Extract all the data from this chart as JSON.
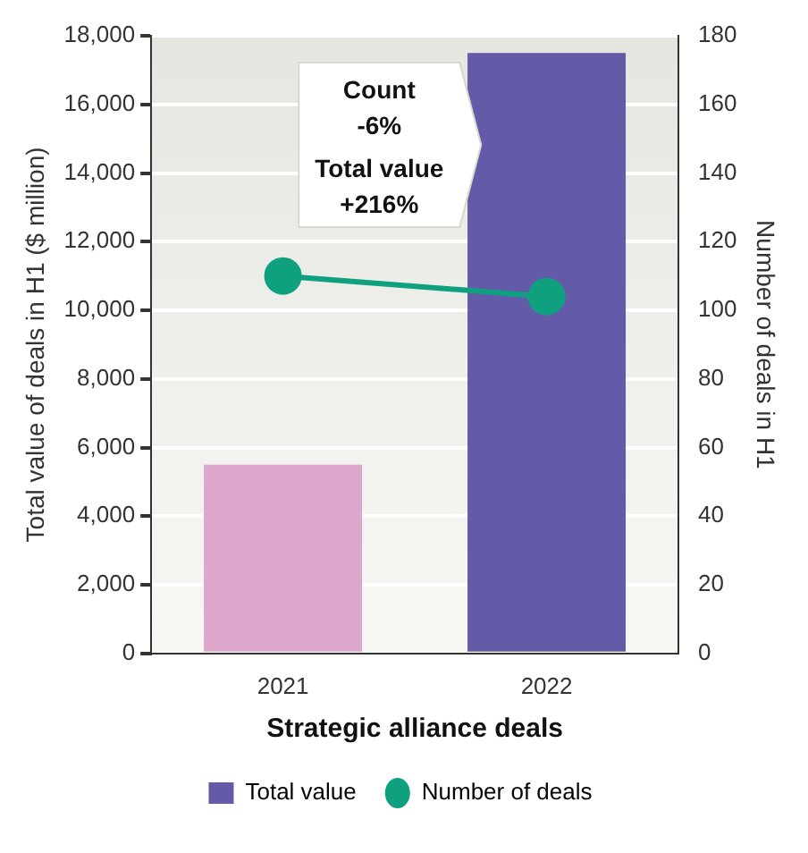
{
  "chart_data": {
    "type": "bar",
    "categories": [
      "2021",
      "2022"
    ],
    "series": [
      {
        "name": "Total value",
        "colors": [
          "#dda6cb",
          "#645ba8"
        ],
        "values": [
          5500,
          17500
        ]
      },
      {
        "name": "Number of deals",
        "type": "line",
        "axis": "y2",
        "color": "#0fa07f",
        "values": [
          110,
          104
        ]
      }
    ],
    "xlabel": "Strategic alliance deals",
    "ylabel": "Total value of deals in H1 ($ million)",
    "y2label": "Number of deals in H1",
    "ylim": [
      0,
      18000
    ],
    "yticks": [
      0,
      {
        "value": 2000,
        "label": "2,000"
      },
      {
        "value": 4000,
        "label": "4,000"
      },
      {
        "value": 6000,
        "label": "6,000"
      },
      {
        "value": 8000,
        "label": "8,000"
      },
      {
        "value": 10000,
        "label": "10,000"
      },
      {
        "value": 12000,
        "label": "12,000"
      },
      {
        "value": 14000,
        "label": "14,000"
      },
      {
        "value": 16000,
        "label": "16,000"
      },
      {
        "value": 18000,
        "label": "18,000"
      }
    ],
    "y2lim": [
      0,
      180
    ],
    "y2ticks": [
      0,
      20,
      40,
      60,
      80,
      100,
      120,
      140,
      160,
      180
    ],
    "grid": "y",
    "legend": "bottom",
    "marker": "circle",
    "annotations": [
      "Count",
      "-6%",
      "Total value",
      "+216%"
    ]
  }
}
